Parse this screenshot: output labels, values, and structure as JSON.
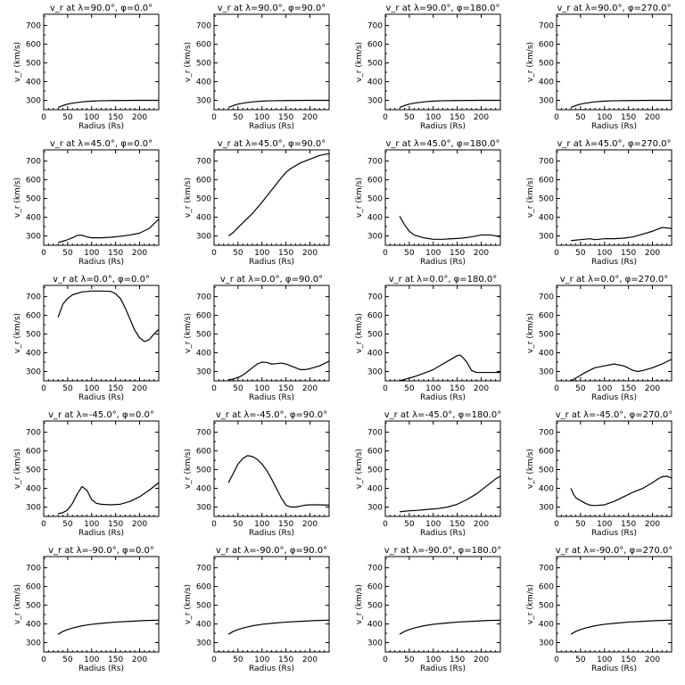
{
  "chart_data": [
    {
      "type": "line",
      "title": "v_r at λ=90.0°, φ=0.0°",
      "xlabel": "Radius (Rs)",
      "ylabel": "v_r (km/s)",
      "xlim": [
        0,
        240
      ],
      "ylim": [
        250,
        760
      ],
      "grid": false,
      "x": [
        30,
        40,
        50,
        60,
        80,
        100,
        120,
        150,
        200,
        240
      ],
      "y": [
        262,
        272,
        280,
        285,
        292,
        296,
        298,
        299,
        300,
        300
      ]
    },
    {
      "type": "line",
      "title": "v_r at λ=90.0°, φ=90.0°",
      "xlabel": "Radius (Rs)",
      "ylabel": "v_r (km/s)",
      "xlim": [
        0,
        240
      ],
      "ylim": [
        250,
        760
      ],
      "grid": false,
      "x": [
        30,
        40,
        50,
        60,
        80,
        100,
        120,
        150,
        200,
        240
      ],
      "y": [
        262,
        272,
        280,
        285,
        292,
        296,
        298,
        299,
        300,
        300
      ]
    },
    {
      "type": "line",
      "title": "v_r at λ=90.0°, φ=180.0°",
      "xlabel": "Radius (Rs)",
      "ylabel": "v_r (km/s)",
      "xlim": [
        0,
        240
      ],
      "ylim": [
        250,
        760
      ],
      "grid": false,
      "x": [
        30,
        40,
        50,
        60,
        80,
        100,
        120,
        150,
        200,
        240
      ],
      "y": [
        262,
        272,
        280,
        285,
        292,
        296,
        298,
        299,
        300,
        300
      ]
    },
    {
      "type": "line",
      "title": "v_r at λ=90.0°, φ=270.0°",
      "xlabel": "Radius (Rs)",
      "ylabel": "v_r (km/s)",
      "xlim": [
        0,
        240
      ],
      "ylim": [
        250,
        760
      ],
      "grid": false,
      "x": [
        30,
        40,
        50,
        60,
        80,
        100,
        120,
        150,
        200,
        240
      ],
      "y": [
        262,
        272,
        280,
        285,
        292,
        296,
        298,
        299,
        300,
        300
      ]
    },
    {
      "type": "line",
      "title": "v_r at λ=45.0°, φ=0.0°",
      "xlabel": "Radius (Rs)",
      "ylabel": "v_r (km/s)",
      "xlim": [
        0,
        240
      ],
      "ylim": [
        250,
        760
      ],
      "grid": false,
      "x": [
        30,
        45,
        60,
        70,
        80,
        90,
        100,
        120,
        140,
        160,
        180,
        200,
        220,
        240
      ],
      "y": [
        265,
        275,
        290,
        303,
        304,
        295,
        290,
        290,
        293,
        298,
        305,
        315,
        340,
        390
      ]
    },
    {
      "type": "line",
      "title": "v_r at λ=45.0°, φ=90.0°",
      "xlabel": "Radius (Rs)",
      "ylabel": "v_r (km/s)",
      "xlim": [
        0,
        240
      ],
      "ylim": [
        250,
        760
      ],
      "grid": false,
      "x": [
        30,
        40,
        50,
        60,
        80,
        100,
        120,
        140,
        150,
        160,
        180,
        200,
        220,
        240
      ],
      "y": [
        300,
        318,
        345,
        370,
        420,
        480,
        545,
        610,
        640,
        660,
        690,
        710,
        730,
        740
      ]
    },
    {
      "type": "line",
      "title": "v_r at λ=45.0°, φ=180.0°",
      "xlabel": "Radius (Rs)",
      "ylabel": "v_r (km/s)",
      "xlim": [
        0,
        240
      ],
      "ylim": [
        250,
        760
      ],
      "grid": false,
      "x": [
        30,
        40,
        50,
        60,
        80,
        100,
        120,
        140,
        160,
        180,
        200,
        220,
        240
      ],
      "y": [
        405,
        360,
        325,
        305,
        290,
        282,
        282,
        285,
        288,
        295,
        305,
        305,
        295
      ]
    },
    {
      "type": "line",
      "title": "v_r at λ=45.0°, φ=270.0°",
      "xlabel": "Radius (Rs)",
      "ylabel": "v_r (km/s)",
      "xlim": [
        0,
        240
      ],
      "ylim": [
        250,
        760
      ],
      "grid": false,
      "x": [
        30,
        50,
        70,
        80,
        100,
        120,
        140,
        160,
        180,
        200,
        220,
        240
      ],
      "y": [
        275,
        280,
        285,
        280,
        285,
        285,
        288,
        295,
        310,
        325,
        345,
        340
      ]
    },
    {
      "type": "line",
      "title": "v_r at λ=0.0°, φ=0.0°",
      "xlabel": "Radius (Rs)",
      "ylabel": "v_r (km/s)",
      "xlim": [
        0,
        240
      ],
      "ylim": [
        250,
        760
      ],
      "grid": false,
      "x": [
        30,
        40,
        50,
        60,
        80,
        100,
        120,
        140,
        150,
        160,
        170,
        180,
        190,
        200,
        210,
        220,
        230,
        240
      ],
      "y": [
        590,
        660,
        690,
        710,
        725,
        730,
        730,
        728,
        715,
        690,
        640,
        580,
        520,
        480,
        460,
        470,
        500,
        525
      ]
    },
    {
      "type": "line",
      "title": "v_r at λ=0.0°, φ=90.0°",
      "xlabel": "Radius (Rs)",
      "ylabel": "v_r (km/s)",
      "xlim": [
        0,
        240
      ],
      "ylim": [
        250,
        760
      ],
      "grid": false,
      "x": [
        30,
        40,
        50,
        60,
        70,
        80,
        90,
        100,
        110,
        120,
        130,
        140,
        150,
        160,
        170,
        180,
        190,
        200,
        220,
        240
      ],
      "y": [
        255,
        260,
        268,
        280,
        300,
        320,
        340,
        350,
        348,
        340,
        342,
        345,
        340,
        330,
        320,
        310,
        310,
        315,
        330,
        355
      ]
    },
    {
      "type": "line",
      "title": "v_r at λ=0.0°, φ=180.0°",
      "xlabel": "Radius (Rs)",
      "ylabel": "v_r (km/s)",
      "xlim": [
        0,
        240
      ],
      "ylim": [
        250,
        760
      ],
      "grid": false,
      "x": [
        30,
        40,
        50,
        60,
        80,
        100,
        120,
        130,
        140,
        150,
        155,
        160,
        170,
        180,
        190,
        200,
        220,
        240
      ],
      "y": [
        250,
        258,
        265,
        272,
        290,
        310,
        340,
        355,
        370,
        385,
        388,
        380,
        350,
        305,
        295,
        295,
        295,
        295
      ]
    },
    {
      "type": "line",
      "title": "v_r at λ=0.0°, φ=270.0°",
      "xlabel": "Radius (Rs)",
      "ylabel": "v_r (km/s)",
      "xlim": [
        0,
        240
      ],
      "ylim": [
        250,
        760
      ],
      "grid": false,
      "x": [
        30,
        40,
        50,
        60,
        80,
        100,
        120,
        140,
        150,
        160,
        170,
        180,
        200,
        220,
        240
      ],
      "y": [
        250,
        265,
        280,
        295,
        320,
        330,
        340,
        330,
        318,
        305,
        300,
        305,
        320,
        340,
        365
      ]
    },
    {
      "type": "line",
      "title": "v_r at λ=-45.0°, φ=0.0°",
      "xlabel": "Radius (Rs)",
      "ylabel": "v_r (km/s)",
      "xlim": [
        0,
        240
      ],
      "ylim": [
        250,
        760
      ],
      "grid": false,
      "x": [
        30,
        40,
        50,
        60,
        70,
        80,
        90,
        100,
        110,
        120,
        140,
        160,
        180,
        200,
        220,
        240
      ],
      "y": [
        265,
        270,
        285,
        320,
        370,
        410,
        390,
        340,
        320,
        315,
        312,
        315,
        330,
        355,
        390,
        430
      ]
    },
    {
      "type": "line",
      "title": "v_r at λ=-45.0°, φ=90.0°",
      "xlabel": "Radius (Rs)",
      "ylabel": "v_r (km/s)",
      "xlim": [
        0,
        240
      ],
      "ylim": [
        250,
        760
      ],
      "grid": false,
      "x": [
        30,
        40,
        50,
        60,
        70,
        80,
        90,
        100,
        110,
        120,
        130,
        140,
        150,
        160,
        170,
        180,
        190,
        200,
        220,
        240
      ],
      "y": [
        430,
        480,
        530,
        560,
        575,
        570,
        555,
        530,
        495,
        450,
        400,
        350,
        310,
        300,
        300,
        305,
        310,
        312,
        312,
        310
      ]
    },
    {
      "type": "line",
      "title": "v_r at λ=-45.0°, φ=180.0°",
      "xlabel": "Radius (Rs)",
      "ylabel": "v_r (km/s)",
      "xlim": [
        0,
        240
      ],
      "ylim": [
        250,
        760
      ],
      "grid": false,
      "x": [
        30,
        50,
        70,
        90,
        110,
        130,
        150,
        170,
        190,
        210,
        230,
        240
      ],
      "y": [
        275,
        280,
        283,
        288,
        292,
        300,
        315,
        340,
        370,
        410,
        450,
        465
      ]
    },
    {
      "type": "line",
      "title": "v_r at λ=-45.0°, φ=270.0°",
      "xlabel": "Radius (Rs)",
      "ylabel": "v_r (km/s)",
      "xlim": [
        0,
        240
      ],
      "ylim": [
        250,
        760
      ],
      "grid": false,
      "x": [
        30,
        35,
        40,
        50,
        60,
        70,
        80,
        100,
        120,
        140,
        160,
        180,
        200,
        210,
        220,
        230,
        240
      ],
      "y": [
        400,
        370,
        350,
        335,
        320,
        310,
        308,
        312,
        330,
        355,
        380,
        400,
        430,
        448,
        462,
        465,
        455
      ]
    },
    {
      "type": "line",
      "title": "v_r at λ=-90.0°, φ=0.0°",
      "xlabel": "Radius (Rs)",
      "ylabel": "v_r (km/s)",
      "xlim": [
        0,
        240
      ],
      "ylim": [
        250,
        760
      ],
      "grid": false,
      "x": [
        30,
        40,
        50,
        60,
        80,
        100,
        120,
        150,
        180,
        210,
        240
      ],
      "y": [
        345,
        360,
        370,
        378,
        390,
        398,
        403,
        410,
        414,
        418,
        420
      ]
    },
    {
      "type": "line",
      "title": "v_r at λ=-90.0°, φ=90.0°",
      "xlabel": "Radius (Rs)",
      "ylabel": "v_r (km/s)",
      "xlim": [
        0,
        240
      ],
      "ylim": [
        250,
        760
      ],
      "grid": false,
      "x": [
        30,
        40,
        50,
        60,
        80,
        100,
        120,
        150,
        180,
        210,
        240
      ],
      "y": [
        345,
        360,
        370,
        378,
        390,
        398,
        403,
        410,
        414,
        418,
        420
      ]
    },
    {
      "type": "line",
      "title": "v_r at λ=-90.0°, φ=180.0°",
      "xlabel": "Radius (Rs)",
      "ylabel": "v_r (km/s)",
      "xlim": [
        0,
        240
      ],
      "ylim": [
        250,
        760
      ],
      "grid": false,
      "x": [
        30,
        40,
        50,
        60,
        80,
        100,
        120,
        150,
        180,
        210,
        240
      ],
      "y": [
        345,
        360,
        370,
        378,
        390,
        398,
        403,
        410,
        414,
        418,
        420
      ]
    },
    {
      "type": "line",
      "title": "v_r at λ=-90.0°, φ=270.0°",
      "xlabel": "Radius (Rs)",
      "ylabel": "v_r (km/s)",
      "xlim": [
        0,
        240
      ],
      "ylim": [
        250,
        760
      ],
      "grid": false,
      "x": [
        30,
        40,
        50,
        60,
        80,
        100,
        120,
        150,
        180,
        210,
        240
      ],
      "y": [
        345,
        360,
        370,
        378,
        390,
        398,
        403,
        410,
        414,
        418,
        420
      ]
    }
  ],
  "shared_axes": {
    "xticks": [
      0,
      50,
      100,
      150,
      200
    ],
    "yticks": [
      300,
      400,
      500,
      600,
      700
    ]
  }
}
